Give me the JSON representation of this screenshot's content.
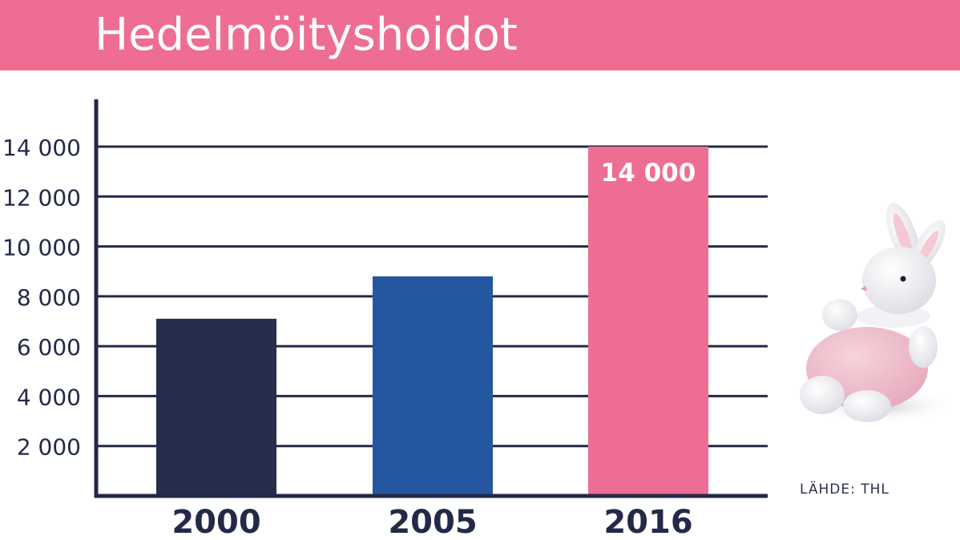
{
  "title": "Hedelmöityshoidot",
  "source_label": "LÄHDE: THL",
  "image_icon": "plush-bunny-icon",
  "colors": {
    "banner": "#ee6d93",
    "axis": "#232a48",
    "bar_2000": "#262e4b",
    "bar_2005": "#24579f",
    "bar_2016": "#ee6d93"
  },
  "chart_data": {
    "type": "bar",
    "title": "Hedelmöityshoidot",
    "categories": [
      "2000",
      "2005",
      "2016"
    ],
    "values": [
      7100,
      8800,
      14000
    ],
    "ylim": [
      0,
      16000
    ],
    "yticks": [
      2000,
      4000,
      6000,
      8000,
      10000,
      12000,
      14000
    ],
    "ytick_labels": [
      "2 000",
      "4 000",
      "6 000",
      "8 000",
      "10 000",
      "12 000",
      "14 000"
    ],
    "data_labels": [
      "",
      "",
      "14 000"
    ],
    "grid": true,
    "legend": "none"
  }
}
